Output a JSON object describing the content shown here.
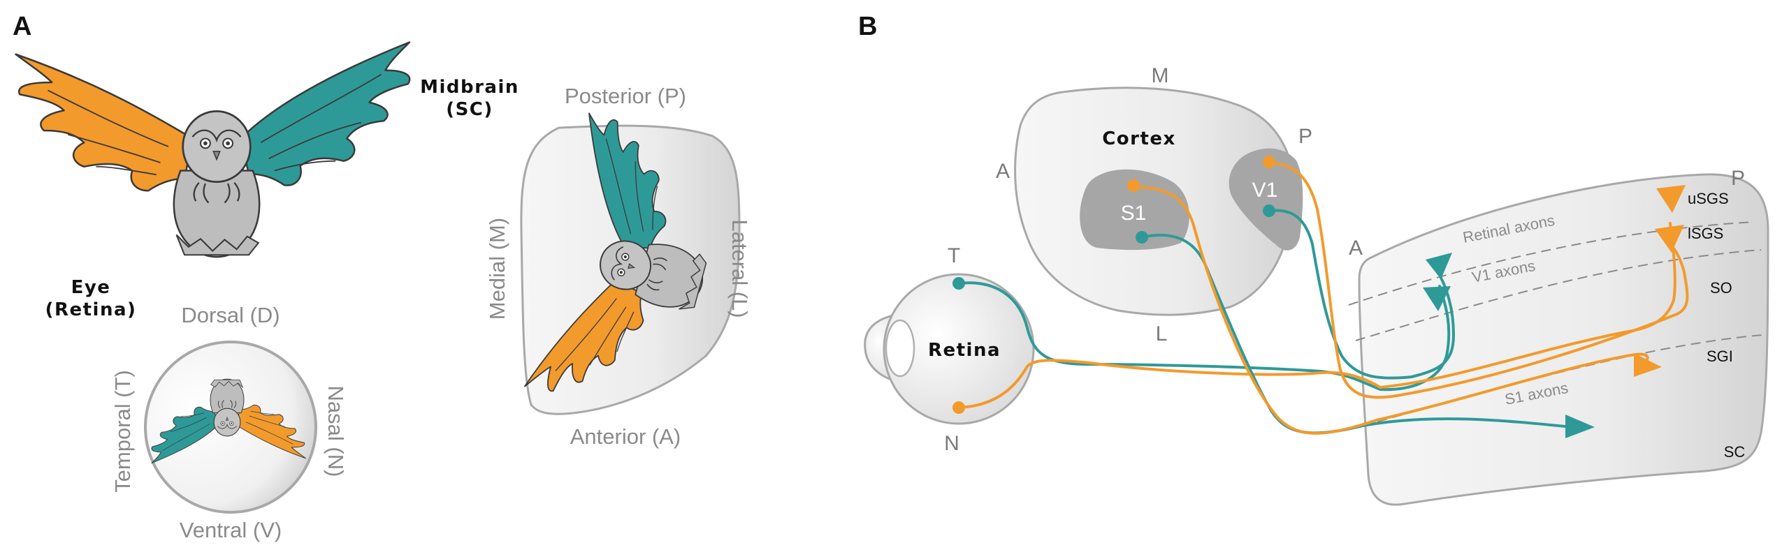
{
  "panel_a": {
    "letter": "A",
    "midbrain_title": [
      "Midbrain",
      "(SC)"
    ],
    "sc_axes": {
      "top": "Posterior (P)",
      "bottom": "Anterior (A)",
      "left": "Medial (M)",
      "right": "Lateral (L)"
    },
    "eye_title": [
      "Eye",
      "(Retina)"
    ],
    "retina_axes": {
      "top": "Dorsal (D)",
      "bottom": "Ventral (V)",
      "left": "Temporal (T)",
      "right": "Nasal (N)"
    }
  },
  "panel_b": {
    "letter": "B",
    "cortex": {
      "title": "Cortex",
      "M": "M",
      "A": "A",
      "P": "P",
      "L": "L",
      "areas": [
        "S1",
        "V1"
      ]
    },
    "retina": {
      "title": "Retina",
      "T": "T",
      "N": "N"
    },
    "sc": {
      "A": "A",
      "P": "P",
      "name": "SC",
      "layers": [
        "uSGS",
        "lSGS",
        "SO",
        "SGI"
      ],
      "axon_labels": [
        "Retinal axons",
        "V1 axons",
        "S1 axons"
      ]
    }
  },
  "colors": {
    "teal": "#2e9a98",
    "orange": "#f39a2c",
    "gray_fill": "#e6e6e6",
    "gray_stroke": "#a0a0a0",
    "area_fill": "#a6a6a6"
  },
  "icons": [
    "owl-icon"
  ]
}
